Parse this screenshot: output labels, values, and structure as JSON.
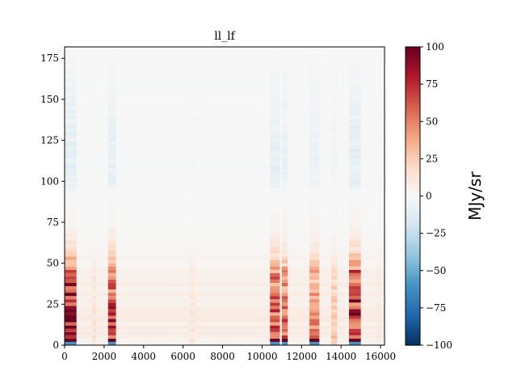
{
  "chart_data": {
    "type": "heatmap",
    "title": "ll_lf",
    "xlabel": "",
    "ylabel": "",
    "xlim": [
      0,
      16200
    ],
    "ylim": [
      0,
      182
    ],
    "x_ticks": [
      0,
      2000,
      4000,
      6000,
      8000,
      10000,
      12000,
      14000,
      16000
    ],
    "y_ticks": [
      0,
      25,
      50,
      75,
      100,
      125,
      150,
      175
    ],
    "colormap": "RdBu_r",
    "colorbar": {
      "label": "MJy/sr",
      "range": [
        -100,
        100
      ],
      "ticks": [
        100,
        75,
        50,
        25,
        0,
        -25,
        -50,
        -75,
        -100
      ],
      "tick_labels": [
        "100",
        "75",
        "50",
        "25",
        "0",
        "−25",
        "−50",
        "−75",
        "−100"
      ]
    },
    "column_bands": [
      {
        "x": [
          0,
          600
        ],
        "strength": 1.0
      },
      {
        "x": [
          1400,
          1600
        ],
        "strength": 0.15
      },
      {
        "x": [
          2200,
          2600
        ],
        "strength": 0.8
      },
      {
        "x": [
          6300,
          6600
        ],
        "strength": 0.12
      },
      {
        "x": [
          10400,
          10900
        ],
        "strength": 0.75
      },
      {
        "x": [
          11000,
          11300
        ],
        "strength": 0.65
      },
      {
        "x": [
          12400,
          12900
        ],
        "strength": 0.55
      },
      {
        "x": [
          13500,
          13800
        ],
        "strength": 0.3
      },
      {
        "x": [
          14400,
          15000
        ],
        "strength": 0.95
      },
      {
        "x": [
          15800,
          16000
        ],
        "strength": 0.12
      }
    ],
    "row_profile": [
      {
        "y": 0,
        "value": 85
      },
      {
        "y": 20,
        "value": 80
      },
      {
        "y": 44,
        "value": 60
      },
      {
        "y": 50,
        "value": 35
      },
      {
        "y": 60,
        "value": 15
      },
      {
        "y": 70,
        "value": 5
      },
      {
        "y": 90,
        "value": 0
      },
      {
        "y": 100,
        "value": -10
      },
      {
        "y": 120,
        "value": -10
      },
      {
        "y": 150,
        "value": -5
      },
      {
        "y": 182,
        "value": 0
      }
    ]
  }
}
